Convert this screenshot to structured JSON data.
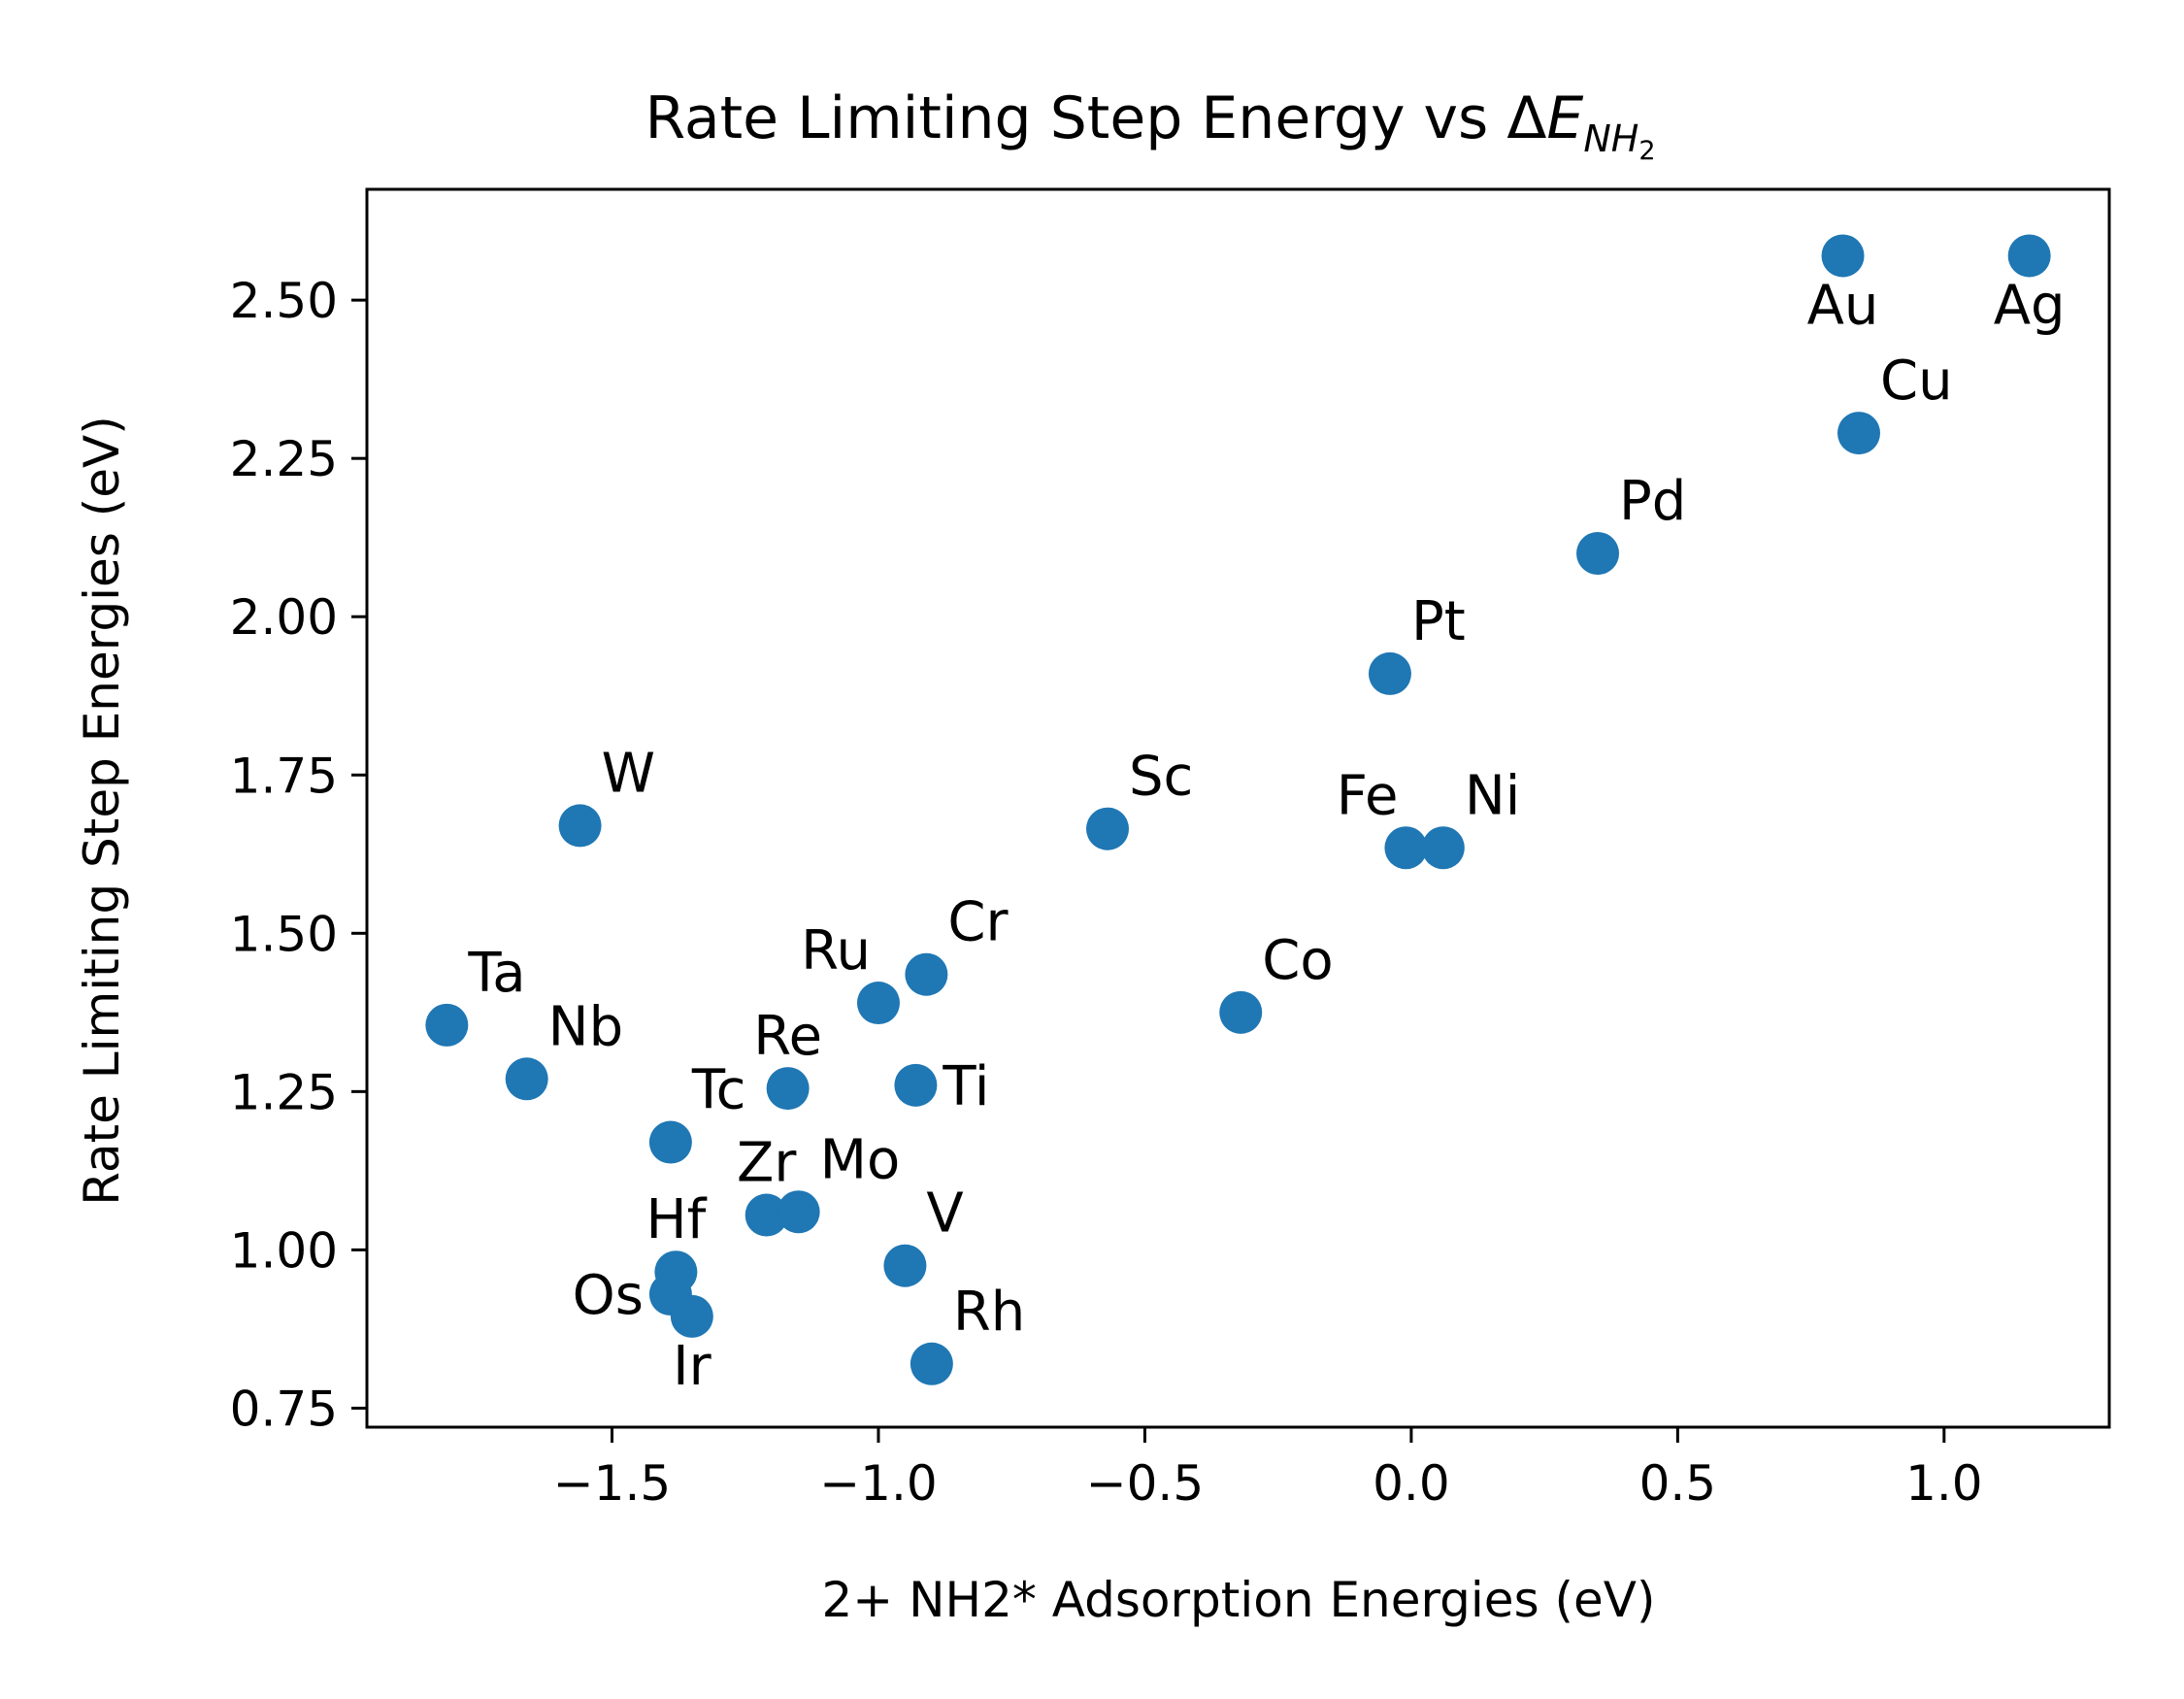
{
  "chart_data": {
    "type": "scatter",
    "title": {
      "main": "Rate Limiting Step Energy vs Δ",
      "symbol": "E",
      "subscript": "NH",
      "subscript2": "2"
    },
    "xlabel": "2+ NH2* Adsorption Energies (eV)",
    "ylabel": "Rate Limiting Step Energies (eV)",
    "xlim": [
      -1.96,
      1.31
    ],
    "ylim": [
      0.72,
      2.675
    ],
    "xticks": [
      {
        "value": -1.5,
        "label": "−1.5"
      },
      {
        "value": -1.0,
        "label": "−1.0"
      },
      {
        "value": -0.5,
        "label": "−0.5"
      },
      {
        "value": 0.0,
        "label": "0.0"
      },
      {
        "value": 0.5,
        "label": "0.5"
      },
      {
        "value": 1.0,
        "label": "1.0"
      }
    ],
    "yticks": [
      {
        "value": 0.75,
        "label": "0.75"
      },
      {
        "value": 1.0,
        "label": "1.00"
      },
      {
        "value": 1.25,
        "label": "1.25"
      },
      {
        "value": 1.5,
        "label": "1.50"
      },
      {
        "value": 1.75,
        "label": "1.75"
      },
      {
        "value": 2.0,
        "label": "2.00"
      },
      {
        "value": 2.25,
        "label": "2.25"
      },
      {
        "value": 2.5,
        "label": "2.50"
      }
    ],
    "grid": false,
    "marker_color": "#1f77b4",
    "points": [
      {
        "label": "Au",
        "x": 0.81,
        "y": 2.57,
        "anchor": "below"
      },
      {
        "label": "Ag",
        "x": 1.16,
        "y": 2.57,
        "anchor": "below"
      },
      {
        "label": "Cu",
        "x": 0.84,
        "y": 2.29,
        "anchor": "above-right"
      },
      {
        "label": "Pd",
        "x": 0.35,
        "y": 2.1,
        "anchor": "above-right"
      },
      {
        "label": "Pt",
        "x": -0.04,
        "y": 1.91,
        "anchor": "above-right"
      },
      {
        "label": "W",
        "x": -1.56,
        "y": 1.67,
        "anchor": "above-right"
      },
      {
        "label": "Sc",
        "x": -0.57,
        "y": 1.665,
        "anchor": "above-right"
      },
      {
        "label": "Fe",
        "x": -0.01,
        "y": 1.635,
        "anchor": "above-left"
      },
      {
        "label": "Ni",
        "x": 0.06,
        "y": 1.635,
        "anchor": "above-right"
      },
      {
        "label": "Cr",
        "x": -0.91,
        "y": 1.435,
        "anchor": "above-right"
      },
      {
        "label": "Ru",
        "x": -1.0,
        "y": 1.39,
        "anchor": "above-left"
      },
      {
        "label": "Co",
        "x": -0.32,
        "y": 1.375,
        "anchor": "above-right"
      },
      {
        "label": "Ta",
        "x": -1.81,
        "y": 1.355,
        "anchor": "above-right"
      },
      {
        "label": "Nb",
        "x": -1.66,
        "y": 1.27,
        "anchor": "above-right"
      },
      {
        "label": "Re",
        "x": -1.17,
        "y": 1.255,
        "anchor": "above"
      },
      {
        "label": "Ti",
        "x": -0.93,
        "y": 1.26,
        "anchor": "right"
      },
      {
        "label": "Tc",
        "x": -1.39,
        "y": 1.17,
        "anchor": "above-right"
      },
      {
        "label": "Zr",
        "x": -1.21,
        "y": 1.055,
        "anchor": "above"
      },
      {
        "label": "Mo",
        "x": -1.15,
        "y": 1.06,
        "anchor": "above-right"
      },
      {
        "label": "V",
        "x": -0.95,
        "y": 0.975,
        "anchor": "above-right"
      },
      {
        "label": "Hf",
        "x": -1.38,
        "y": 0.965,
        "anchor": "above"
      },
      {
        "label": "Os",
        "x": -1.39,
        "y": 0.93,
        "anchor": "left"
      },
      {
        "label": "Ir",
        "x": -1.35,
        "y": 0.895,
        "anchor": "below"
      },
      {
        "label": "Rh",
        "x": -0.9,
        "y": 0.82,
        "anchor": "above-right"
      }
    ]
  }
}
